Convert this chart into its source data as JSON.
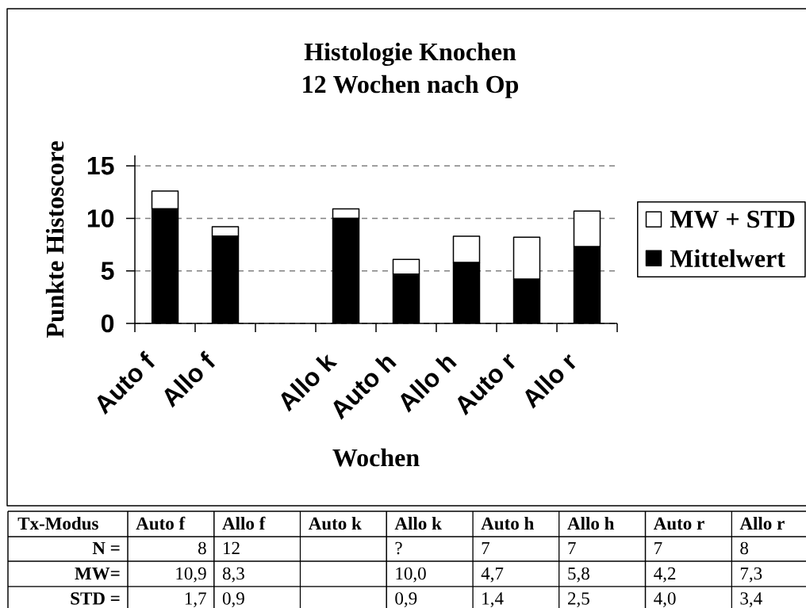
{
  "chart_data": {
    "type": "bar",
    "title": "Histologie Knochen",
    "subtitle": "12 Wochen nach Op",
    "xlabel": "Wochen",
    "ylabel": "Punkte Histoscore",
    "categories": [
      "Auto f",
      "Allo f",
      null,
      "Allo k",
      "Auto h",
      "Allo h",
      "Auto r",
      "Allo r"
    ],
    "series": [
      {
        "name": "Mittelwert",
        "color": "#000000",
        "values": [
          10.9,
          8.3,
          null,
          10.0,
          4.7,
          5.8,
          4.2,
          7.3
        ]
      },
      {
        "name": "MW + STD",
        "color": "#ffffff",
        "values": [
          1.7,
          0.9,
          null,
          0.9,
          1.4,
          2.5,
          4.0,
          3.4
        ]
      }
    ],
    "stacked": true,
    "ylim": [
      0,
      16
    ],
    "yticks": [
      0,
      5,
      10,
      15
    ],
    "grid": "y",
    "legend": "right",
    "annotations": [
      "Tx-Modus",
      "Auto k",
      "N =",
      "8",
      "12",
      "?",
      "7",
      "7",
      "7",
      "8",
      "MW=",
      "10,9",
      "8,3",
      "10,0",
      "4,7",
      "5,8",
      "4,2",
      "7,3",
      "STD =",
      "1,7",
      "0,9",
      "0,9",
      "1,4",
      "2,5",
      "4,0",
      "3,4"
    ]
  }
}
